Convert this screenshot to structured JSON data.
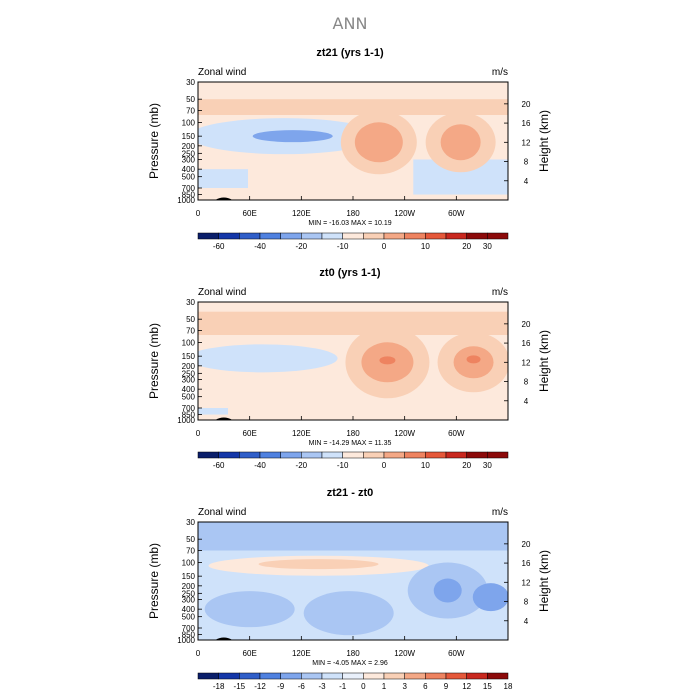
{
  "figure_title": "ANN",
  "palette": {
    "full": [
      "#0a1e6a",
      "#1437a8",
      "#2f5ec9",
      "#4f81e0",
      "#7ea5ec",
      "#aac6f3",
      "#cfe2fa",
      "#e9f0fb",
      "#fde9dc",
      "#f9d0b6",
      "#f4a886",
      "#ee8360",
      "#e5583a",
      "#c9281f",
      "#8c0a0a"
    ],
    "model_panel": [
      "#0a1e6a",
      "#1437a8",
      "#2f5ec9",
      "#4f81e0",
      "#7ea5ec",
      "#aac6f3",
      "#cfe2fa",
      "#fde9dc",
      "#f9d0b6",
      "#f4a886",
      "#ee8360",
      "#e5583a",
      "#c9281f",
      "#8c0a0a"
    ]
  },
  "chart_data": [
    {
      "type": "heatmap",
      "title": "zt21 (yrs 1-1)",
      "left_label": "Zonal wind",
      "right_label": "m/s",
      "ylabel": "Pressure (mb)",
      "ylabel_right": "Height (km)",
      "xticks": [
        "0",
        "60E",
        "120E",
        "180",
        "120W",
        "60W"
      ],
      "x_values": [
        0,
        60,
        120,
        180,
        240,
        300
      ],
      "xlim": [
        0,
        360
      ],
      "yticks": [
        "30",
        "50",
        "70",
        "100",
        "150",
        "200",
        "250",
        "300",
        "400",
        "500",
        "700",
        "850",
        "1000"
      ],
      "y_values": [
        30,
        50,
        70,
        100,
        150,
        200,
        250,
        300,
        400,
        500,
        700,
        850,
        1000
      ],
      "ylim": [
        30,
        1000
      ],
      "log_y": true,
      "height_ticks": [
        "4",
        "8",
        "12",
        "16",
        "20"
      ],
      "height_values": [
        4,
        8,
        12,
        16,
        20
      ],
      "stats": "MIN = -16.03   MAX =  10.19",
      "colorbar_labels": [
        "-60",
        "-40",
        "-20",
        "-10",
        "0",
        "10",
        "20",
        "30"
      ],
      "colorbar_levels": [
        -70,
        -60,
        -50,
        -40,
        -30,
        -20,
        -15,
        -10,
        -5,
        0,
        5,
        10,
        15,
        20,
        30,
        40
      ],
      "features": [
        {
          "lon": 120,
          "p": 150,
          "value": -16,
          "extent": 60
        },
        {
          "lon": 215,
          "p": 180,
          "value": 10,
          "extent": 35
        },
        {
          "lon": 300,
          "p": 180,
          "value": 10,
          "extent": 30
        }
      ]
    },
    {
      "type": "heatmap",
      "title": "zt0 (yrs 1-1)",
      "left_label": "Zonal wind",
      "right_label": "m/s",
      "ylabel": "Pressure (mb)",
      "ylabel_right": "Height (km)",
      "xticks": [
        "0",
        "60E",
        "120E",
        "180",
        "120W",
        "60W"
      ],
      "x_values": [
        0,
        60,
        120,
        180,
        240,
        300
      ],
      "xlim": [
        0,
        360
      ],
      "yticks": [
        "30",
        "50",
        "70",
        "100",
        "150",
        "200",
        "250",
        "300",
        "400",
        "500",
        "700",
        "850",
        "1000"
      ],
      "y_values": [
        30,
        50,
        70,
        100,
        150,
        200,
        250,
        300,
        400,
        500,
        700,
        850,
        1000
      ],
      "ylim": [
        30,
        1000
      ],
      "log_y": true,
      "height_ticks": [
        "4",
        "8",
        "12",
        "16",
        "20"
      ],
      "height_values": [
        4,
        8,
        12,
        16,
        20
      ],
      "stats": "MIN = -14.29   MAX =  11.35",
      "colorbar_labels": [
        "-60",
        "-40",
        "-20",
        "-10",
        "0",
        "10",
        "20",
        "30"
      ],
      "colorbar_levels": [
        -70,
        -60,
        -50,
        -40,
        -30,
        -20,
        -15,
        -10,
        -5,
        0,
        5,
        10,
        15,
        20,
        30,
        40
      ],
      "features": [
        {
          "lon": 100,
          "p": 150,
          "value": -14,
          "extent": 60
        },
        {
          "lon": 220,
          "p": 180,
          "value": 11,
          "extent": 35
        },
        {
          "lon": 320,
          "p": 180,
          "value": 11,
          "extent": 30
        }
      ]
    },
    {
      "type": "heatmap",
      "title": "zt21 - zt0",
      "left_label": "Zonal wind",
      "right_label": "m/s",
      "ylabel": "Pressure (mb)",
      "ylabel_right": "Height (km)",
      "xticks": [
        "0",
        "60E",
        "120E",
        "180",
        "120W",
        "60W"
      ],
      "x_values": [
        0,
        60,
        120,
        180,
        240,
        300
      ],
      "xlim": [
        0,
        360
      ],
      "yticks": [
        "30",
        "50",
        "70",
        "100",
        "150",
        "200",
        "250",
        "300",
        "400",
        "500",
        "700",
        "850",
        "1000"
      ],
      "y_values": [
        30,
        50,
        70,
        100,
        150,
        200,
        250,
        300,
        400,
        500,
        700,
        850,
        1000
      ],
      "ylim": [
        30,
        1000
      ],
      "log_y": true,
      "height_ticks": [
        "4",
        "8",
        "12",
        "16",
        "20"
      ],
      "height_values": [
        4,
        8,
        12,
        16,
        20
      ],
      "stats": "MIN =  -4.05   MAX =   2.96",
      "colorbar_labels": [
        "-18",
        "-15",
        "-12",
        "-9",
        "-6",
        "-3",
        "-1",
        "0",
        "1",
        "3",
        "6",
        "9",
        "12",
        "15",
        "18"
      ],
      "colorbar_levels": [
        -21,
        -18,
        -15,
        -12,
        -9,
        -6,
        -3,
        -1,
        0,
        1,
        3,
        6,
        9,
        12,
        15,
        18
      ],
      "features": [
        {
          "lon": 150,
          "p": 100,
          "value": 2,
          "extent": 120
        },
        {
          "lon": 290,
          "p": 230,
          "value": -4,
          "extent": 40
        },
        {
          "lon": 60,
          "p": 350,
          "value": -3,
          "extent": 60
        }
      ]
    }
  ]
}
